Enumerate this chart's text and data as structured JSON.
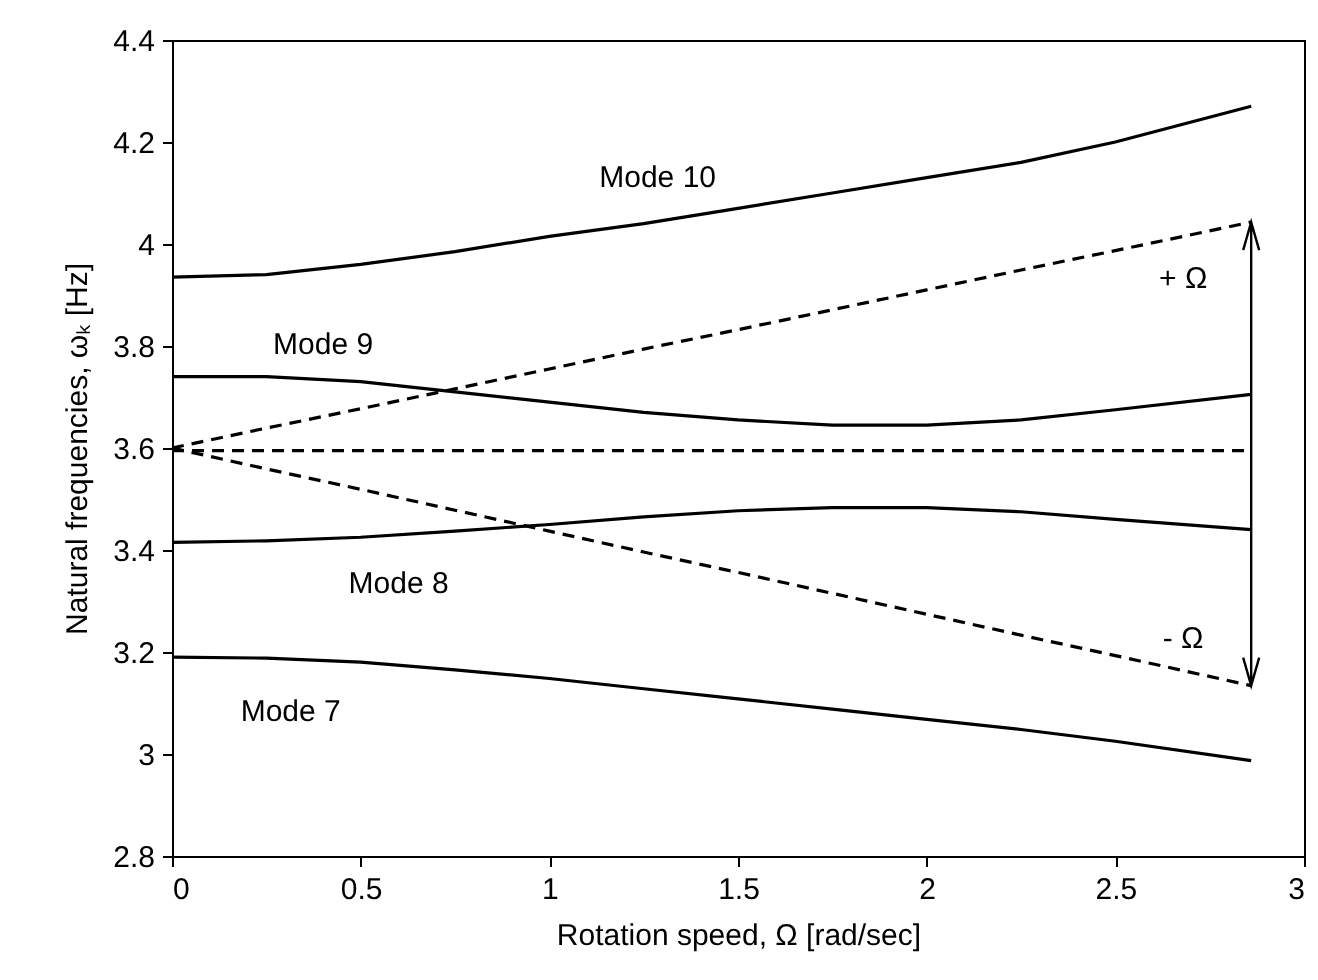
{
  "chart_data": {
    "type": "line",
    "xlabel": "Rotation speed, Ω [rad/sec]",
    "ylabel": "Natural frequencies, ωₖ [Hz]",
    "xlim": [
      0,
      3
    ],
    "xticks": [
      0,
      0.5,
      1,
      1.5,
      2,
      2.5,
      3
    ],
    "ylim": [
      2.8,
      4.4
    ],
    "yticks": [
      2.8,
      3,
      3.2,
      3.4,
      3.6,
      3.8,
      4,
      4.2,
      4.4
    ],
    "x": [
      0,
      0.25,
      0.5,
      0.75,
      1,
      1.25,
      1.5,
      1.75,
      2,
      2.25,
      2.5,
      2.86
    ],
    "series": [
      {
        "name": "Mode 10",
        "color": "#000000",
        "line_style": "solid",
        "values": [
          3.935,
          3.94,
          3.96,
          3.985,
          4.015,
          4.04,
          4.07,
          4.1,
          4.13,
          4.16,
          4.2,
          4.27
        ]
      },
      {
        "name": "Mode 9",
        "color": "#000000",
        "line_style": "solid",
        "values": [
          3.74,
          3.74,
          3.73,
          3.71,
          3.69,
          3.67,
          3.655,
          3.645,
          3.645,
          3.655,
          3.675,
          3.705
        ]
      },
      {
        "name": "Mode 8",
        "color": "#000000",
        "line_style": "solid",
        "values": [
          3.415,
          3.418,
          3.425,
          3.437,
          3.45,
          3.465,
          3.477,
          3.483,
          3.483,
          3.475,
          3.46,
          3.44
        ]
      },
      {
        "name": "Mode 7",
        "color": "#000000",
        "line_style": "solid",
        "values": [
          3.19,
          3.188,
          3.18,
          3.165,
          3.148,
          3.128,
          3.108,
          3.088,
          3.068,
          3.048,
          3.025,
          2.987
        ]
      },
      {
        "color": "#000000",
        "line_style": "dashed",
        "values": [
          3.6,
          3.639,
          3.677,
          3.716,
          3.755,
          3.794,
          3.832,
          3.871,
          3.91,
          3.949,
          3.987,
          4.043
        ]
      },
      {
        "color": "#000000",
        "line_style": "dashed",
        "values": [
          3.595,
          3.595,
          3.595,
          3.595,
          3.595,
          3.595,
          3.595,
          3.595,
          3.595,
          3.595,
          3.595,
          3.595
        ]
      },
      {
        "color": "#000000",
        "line_style": "dashed",
        "values": [
          3.6,
          3.559,
          3.519,
          3.478,
          3.437,
          3.396,
          3.356,
          3.315,
          3.274,
          3.233,
          3.193,
          3.134
        ]
      }
    ],
    "annotations": [
      "+ Ω",
      "- Ω"
    ]
  }
}
